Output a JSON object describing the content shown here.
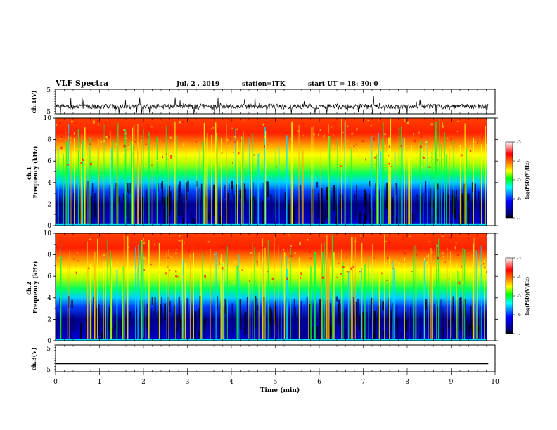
{
  "header": {
    "title": "VLF Spectra",
    "date": "Jul. 2 , 2019",
    "station": "station=ITK",
    "start": "start UT =  18: 30: 0"
  },
  "chart_data": [
    {
      "type": "line",
      "name": "ch1-waveform",
      "ylabel": "ch.1(V)",
      "ylim": [
        -5,
        5
      ],
      "yticks": [
        "5",
        "-5"
      ],
      "baseline": -2,
      "noise_amplitude": 1,
      "spikes": "frequent"
    },
    {
      "type": "heatmap",
      "name": "ch1-spectrogram",
      "ylabel": "ch.1\nFrequency (kHz)",
      "ylim": [
        0,
        10
      ],
      "yticks": [
        "0",
        "2",
        "4",
        "6",
        "8",
        "10"
      ],
      "colorbar": {
        "label": "log(PSD)(V²/Hz)",
        "range": [
          -7,
          -3
        ],
        "ticks": [
          "-3",
          "-4",
          "-5",
          "-6",
          "-7"
        ]
      }
    },
    {
      "type": "heatmap",
      "name": "ch2-spectrogram",
      "ylabel": "ch.2\nFrequency (kHz)",
      "ylim": [
        0,
        10
      ],
      "yticks": [
        "0",
        "2",
        "4",
        "6",
        "8",
        "10"
      ],
      "colorbar": {
        "label": "log(PSD)(V²/Hz)",
        "range": [
          -7,
          -3
        ],
        "ticks": [
          "-3",
          "-4",
          "-5",
          "-6",
          "-7"
        ]
      }
    },
    {
      "type": "line",
      "name": "ch3-waveform",
      "ylabel": "ch.3(V)",
      "ylim": [
        -5,
        5
      ],
      "yticks": [
        "5",
        "-5"
      ],
      "baseline": -2,
      "noise_amplitude": 0
    }
  ],
  "xaxis": {
    "label": "Time (min)",
    "range": [
      0,
      10
    ],
    "ticks": [
      "0",
      "1",
      "2",
      "3",
      "4",
      "5",
      "6",
      "7",
      "8",
      "9",
      "10"
    ],
    "data_end": 9.85
  },
  "colors": {
    "colormap": [
      "#ffffff",
      "#ff0000",
      "#ff7f00",
      "#ffff00",
      "#00ff00",
      "#00ffff",
      "#0000ff",
      "#000080",
      "#000000"
    ],
    "trace": "#000000"
  }
}
